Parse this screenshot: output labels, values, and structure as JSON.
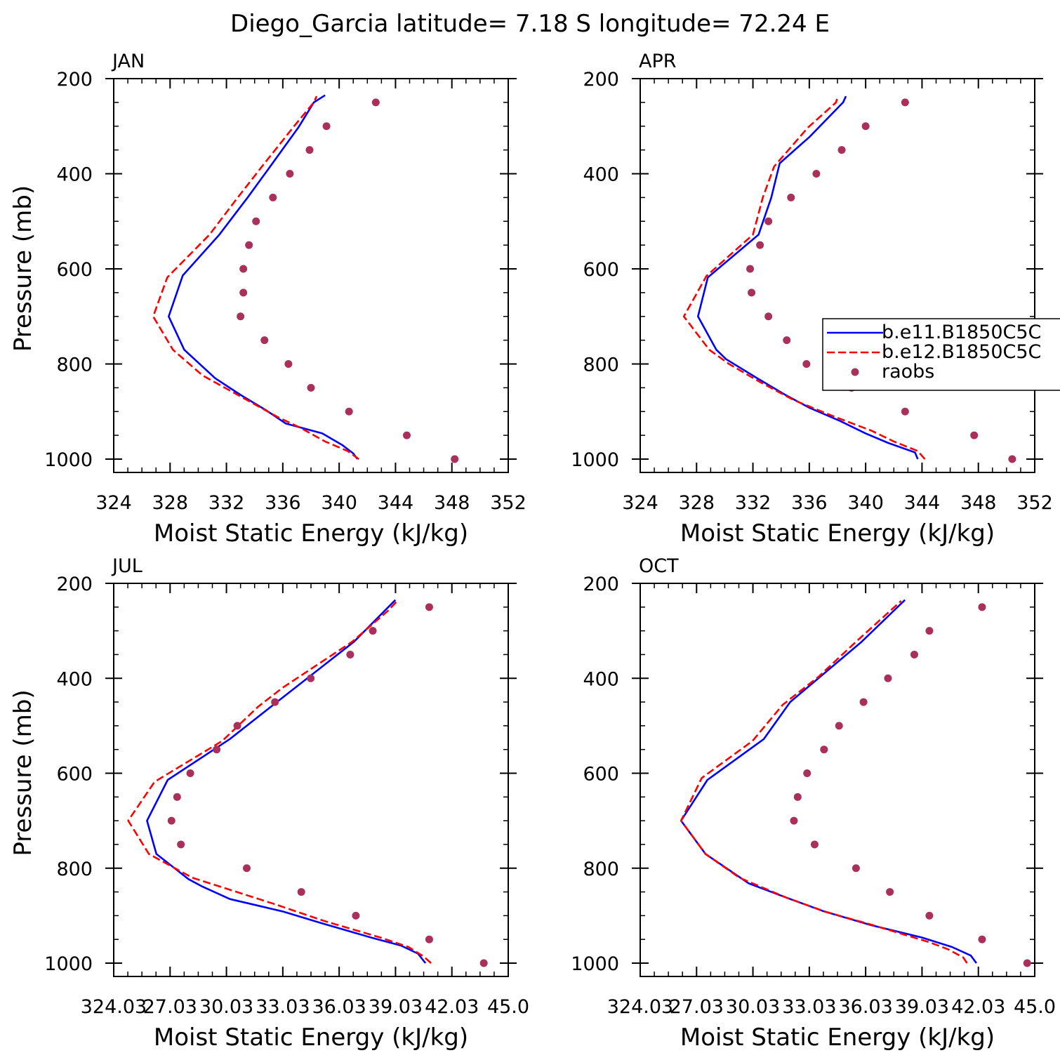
{
  "title": "Diego_Garcia  latitude= 7.18 S longitude= 72.24 E",
  "colors": {
    "series1": "#0000ff",
    "series2": "#ff0000",
    "obs": "#a8305a"
  },
  "chart_data": [
    {
      "type": "line",
      "panel_label": "JAN",
      "xlabel": "Moist Static Energy (kJ/kg)",
      "ylabel": "Pressure (mb)",
      "xlim": [
        324,
        352
      ],
      "ylim": [
        1000,
        200
      ],
      "xticks": [
        "324",
        "328",
        "332",
        "336",
        "340",
        "344",
        "348",
        "352"
      ],
      "yticks": [
        "200",
        "400",
        "600",
        "800",
        "1000"
      ],
      "series": [
        {
          "values": [
            [
              341.3,
              1000
            ],
            [
              341,
              988
            ],
            [
              340.2,
              970
            ],
            [
              338.8,
              946
            ],
            [
              336.2,
              925
            ],
            [
              334.8,
              897
            ],
            [
              333,
              865
            ],
            [
              331.2,
              830
            ],
            [
              329,
              770
            ],
            [
              327.9,
              700
            ],
            [
              328.9,
              614
            ],
            [
              331.5,
              528
            ],
            [
              333.5,
              450
            ],
            [
              335.1,
              385
            ],
            [
              337.1,
              303
            ],
            [
              338.2,
              250
            ],
            [
              339,
              235
            ]
          ]
        },
        {
          "values": [
            [
              341.4,
              1000
            ],
            [
              340.6,
              983
            ],
            [
              339,
              963
            ],
            [
              337.3,
              935
            ],
            [
              335.6,
              911
            ],
            [
              332.8,
              865
            ],
            [
              330.3,
              824
            ],
            [
              328.2,
              770
            ],
            [
              326.8,
              700
            ],
            [
              327.8,
              618
            ],
            [
              330.8,
              528
            ],
            [
              332.8,
              450
            ],
            [
              334.7,
              378
            ],
            [
              336.8,
              300
            ],
            [
              338.2,
              250
            ],
            [
              338.4,
              237
            ]
          ]
        },
        {
          "values": [
            [
              348.2,
              1000
            ],
            [
              344.8,
              950
            ],
            [
              340.7,
              900
            ],
            [
              338,
              850
            ],
            [
              336.4,
              800
            ],
            [
              334.7,
              750
            ],
            [
              333,
              700
            ],
            [
              333.2,
              650
            ],
            [
              333.2,
              600
            ],
            [
              333.6,
              550
            ],
            [
              334.1,
              500
            ],
            [
              335.3,
              450
            ],
            [
              336.5,
              400
            ],
            [
              337.9,
              350
            ],
            [
              339.1,
              300
            ],
            [
              342.6,
              250
            ]
          ]
        }
      ]
    },
    {
      "type": "line",
      "panel_label": "APR",
      "xlabel": "Moist Static Energy (kJ/kg)",
      "ylabel": "",
      "xlim": [
        324,
        352
      ],
      "ylim": [
        1000,
        200
      ],
      "xticks": [
        "324",
        "328",
        "332",
        "336",
        "340",
        "344",
        "348",
        "352"
      ],
      "yticks": [
        "200",
        "400",
        "600",
        "800",
        "1000"
      ],
      "legend": {
        "position": "right",
        "entries": [
          "b.e11.B1850C5C",
          "b.e12.B1850C5C",
          "raobs"
        ]
      },
      "series": [
        {
          "name": "b.e11.B1850C5C",
          "values": [
            [
              343.7,
              1000
            ],
            [
              343.5,
              986
            ],
            [
              341.6,
              966
            ],
            [
              340,
              946
            ],
            [
              338.2,
              920
            ],
            [
              336,
              892
            ],
            [
              334.3,
              865
            ],
            [
              332.3,
              830
            ],
            [
              330.1,
              790
            ],
            [
              329.4,
              770
            ],
            [
              328.1,
              700
            ],
            [
              328.8,
              618
            ],
            [
              332.4,
              528
            ],
            [
              333.3,
              450
            ],
            [
              333.9,
              378
            ],
            [
              336,
              323
            ],
            [
              338.4,
              250
            ],
            [
              338.6,
              237
            ]
          ]
        },
        {
          "name": "b.e12.B1850C5C",
          "values": [
            [
              344.2,
              1000
            ],
            [
              343.7,
              983
            ],
            [
              342,
              963
            ],
            [
              340.4,
              940
            ],
            [
              337.8,
              911
            ],
            [
              334.9,
              876
            ],
            [
              332.5,
              838
            ],
            [
              330.3,
              800
            ],
            [
              328.9,
              770
            ],
            [
              327.1,
              700
            ],
            [
              328.7,
              615
            ],
            [
              332,
              528
            ],
            [
              332.7,
              450
            ],
            [
              333.5,
              385
            ],
            [
              335.9,
              303
            ],
            [
              337.9,
              250
            ],
            [
              338,
              238
            ]
          ]
        },
        {
          "name": "raobs",
          "values": [
            [
              350.4,
              1000
            ],
            [
              347.7,
              950
            ],
            [
              342.8,
              900
            ],
            [
              339,
              850
            ],
            [
              335.8,
              800
            ],
            [
              334.4,
              750
            ],
            [
              333.1,
              700
            ],
            [
              331.9,
              650
            ],
            [
              331.8,
              600
            ],
            [
              332.5,
              550
            ],
            [
              333.1,
              500
            ],
            [
              334.7,
              450
            ],
            [
              336.5,
              400
            ],
            [
              338.3,
              350
            ],
            [
              340,
              300
            ],
            [
              342.8,
              250
            ]
          ]
        }
      ]
    },
    {
      "type": "line",
      "panel_label": "JUL",
      "xlabel": "Moist Static Energy (kJ/kg)",
      "ylabel": "Pressure (mb)",
      "xlim": [
        324.03,
        345.0
      ],
      "ylim": [
        1000,
        200
      ],
      "xticks": [
        "324.03",
        "27.03",
        "30.03",
        "33.03",
        "36.03",
        "39.03",
        "42.03",
        "45.0"
      ],
      "yticks": [
        "200",
        "400",
        "600",
        "800",
        "1000"
      ],
      "series": [
        {
          "values": [
            [
              340.6,
              1000
            ],
            [
              340.2,
              980
            ],
            [
              339.3,
              963
            ],
            [
              337.7,
              946
            ],
            [
              335,
              915
            ],
            [
              333,
              891
            ],
            [
              330.2,
              865
            ],
            [
              328.7,
              838
            ],
            [
              328,
              823
            ],
            [
              326.3,
              770
            ],
            [
              325.8,
              700
            ],
            [
              326.9,
              614
            ],
            [
              330.2,
              528
            ],
            [
              332.7,
              450
            ],
            [
              334.8,
              385
            ],
            [
              336.8,
              323
            ],
            [
              339,
              235
            ]
          ]
        },
        {
          "values": [
            [
              340.9,
              1000
            ],
            [
              340.5,
              986
            ],
            [
              339.7,
              966
            ],
            [
              338.2,
              946
            ],
            [
              335.2,
              911
            ],
            [
              332.6,
              876
            ],
            [
              328.2,
              820
            ],
            [
              325.9,
              770
            ],
            [
              324.8,
              700
            ],
            [
              326.2,
              618
            ],
            [
              329.8,
              532
            ],
            [
              331.7,
              460
            ],
            [
              333,
              420
            ],
            [
              336.7,
              323
            ],
            [
              338.6,
              258
            ],
            [
              339.1,
              237
            ]
          ]
        },
        {
          "values": [
            [
              343.7,
              1000
            ],
            [
              340.8,
              950
            ],
            [
              336.9,
              900
            ],
            [
              334,
              850
            ],
            [
              331.1,
              800
            ],
            [
              327.6,
              750
            ],
            [
              327.1,
              700
            ],
            [
              327.4,
              650
            ],
            [
              328.1,
              600
            ],
            [
              329.5,
              550
            ],
            [
              330.6,
              500
            ],
            [
              332.6,
              450
            ],
            [
              334.5,
              400
            ],
            [
              336.6,
              350
            ],
            [
              337.8,
              300
            ],
            [
              340.8,
              250
            ]
          ]
        }
      ]
    },
    {
      "type": "line",
      "panel_label": "OCT",
      "xlabel": "Moist Static Energy (kJ/kg)",
      "ylabel": "",
      "xlim": [
        324.03,
        345.0
      ],
      "ylim": [
        1000,
        200
      ],
      "xticks": [
        "324.03",
        "27.03",
        "30.03",
        "33.03",
        "36.03",
        "39.03",
        "42.03",
        "45.0"
      ],
      "yticks": [
        "200",
        "400",
        "600",
        "800",
        "1000"
      ],
      "series": [
        {
          "values": [
            [
              341.9,
              1000
            ],
            [
              341.6,
              984
            ],
            [
              340.6,
              966
            ],
            [
              339,
              946
            ],
            [
              336.3,
              920
            ],
            [
              333.8,
              891
            ],
            [
              331.8,
              862
            ],
            [
              329.8,
              832
            ],
            [
              327.5,
              770
            ],
            [
              326.2,
              700
            ],
            [
              327.6,
              614
            ],
            [
              330.6,
              528
            ],
            [
              332,
              450
            ],
            [
              333.8,
              390
            ],
            [
              335.8,
              323
            ],
            [
              338.1,
              235
            ]
          ]
        },
        {
          "values": [
            [
              341.4,
              1000
            ],
            [
              341.2,
              988
            ],
            [
              340.4,
              971
            ],
            [
              339.4,
              956
            ],
            [
              336.4,
              920
            ],
            [
              333.9,
              892
            ],
            [
              331.8,
              862
            ],
            [
              329.3,
              820
            ],
            [
              327.5,
              770
            ],
            [
              326.2,
              700
            ],
            [
              327.3,
              610
            ],
            [
              330,
              532
            ],
            [
              331.6,
              456
            ],
            [
              333.5,
              397
            ],
            [
              335.5,
              323
            ],
            [
              337.9,
              237
            ]
          ]
        },
        {
          "values": [
            [
              344.6,
              1000
            ],
            [
              342.2,
              950
            ],
            [
              339.4,
              900
            ],
            [
              337.3,
              850
            ],
            [
              335.5,
              800
            ],
            [
              333.3,
              750
            ],
            [
              332.2,
              700
            ],
            [
              332.4,
              650
            ],
            [
              332.9,
              600
            ],
            [
              333.8,
              550
            ],
            [
              334.6,
              500
            ],
            [
              335.9,
              450
            ],
            [
              337.2,
              400
            ],
            [
              338.6,
              350
            ],
            [
              339.4,
              300
            ],
            [
              342.2,
              250
            ]
          ]
        }
      ]
    }
  ]
}
